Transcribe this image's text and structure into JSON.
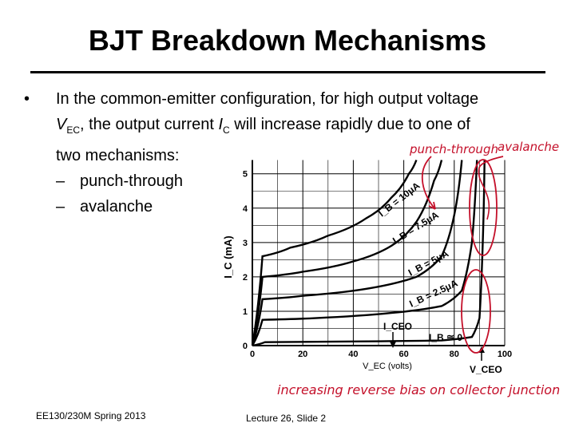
{
  "slide": {
    "title": "BJT Breakdown Mechanisms",
    "bullet_main_1": "In the common-emitter configuration, for high output voltage",
    "bullet_var_v": "V",
    "bullet_var_v_sub": "EC",
    "bullet_main_2": ", the output current ",
    "bullet_var_i": "I",
    "bullet_var_i_sub": "C",
    "bullet_main_3": " will increase rapidly due to one of",
    "bullet_main_4": "two mechanisms:",
    "sub_items": [
      "punch-through",
      "avalanche"
    ],
    "footer_left": "EE130/230M Spring 2013",
    "footer_center": "Lecture 26, Slide 2"
  },
  "annotations": {
    "punch_through": "punch-through",
    "avalanche": "avalanche",
    "bottom_note": "increasing reverse bias on collector junction",
    "color": "#c4102a"
  },
  "chart_data": {
    "type": "line",
    "xlabel": "V_EC (volts)",
    "ylabel": "I_C (mA)",
    "x_ticks": [
      "0",
      "20",
      "40",
      "60",
      "80",
      "100"
    ],
    "y_ticks": [
      "0",
      "1",
      "2",
      "3",
      "4",
      "5"
    ],
    "xlim": [
      0,
      100
    ],
    "ylim": [
      0,
      5
    ],
    "grid": true,
    "curve_labels": [
      "I_B = 10μA",
      "I_B = 7.5μA",
      "I_B = 5μA",
      "I_B = 2.5μA",
      "I_B ≅ 0"
    ],
    "marker_labels": [
      "I_CEO",
      "V_CEO"
    ],
    "series": [
      {
        "name": "I_B = 10μA",
        "x": [
          0,
          4,
          15,
          30,
          45,
          55,
          62,
          65
        ],
        "y": [
          0,
          2.6,
          2.85,
          3.2,
          3.7,
          4.3,
          5.0,
          5.4
        ]
      },
      {
        "name": "I_B = 7.5μA",
        "x": [
          0,
          4,
          20,
          40,
          55,
          65,
          72,
          75
        ],
        "y": [
          0,
          2.0,
          2.15,
          2.45,
          2.9,
          3.6,
          4.8,
          5.4
        ]
      },
      {
        "name": "I_B = 5μA",
        "x": [
          0,
          4,
          20,
          45,
          65,
          75,
          80,
          83
        ],
        "y": [
          0,
          1.35,
          1.45,
          1.65,
          2.0,
          2.6,
          3.8,
          5.4
        ]
      },
      {
        "name": "I_B = 2.5μA",
        "x": [
          0,
          4,
          25,
          55,
          75,
          83,
          87,
          89
        ],
        "y": [
          0,
          0.75,
          0.8,
          0.95,
          1.15,
          1.6,
          3.0,
          5.4
        ]
      },
      {
        "name": "I_B ≅ 0",
        "x": [
          0,
          5,
          40,
          75,
          87,
          90,
          91.5,
          92
        ],
        "y": [
          0,
          0.1,
          0.12,
          0.15,
          0.25,
          0.8,
          3.5,
          5.4
        ]
      }
    ]
  }
}
